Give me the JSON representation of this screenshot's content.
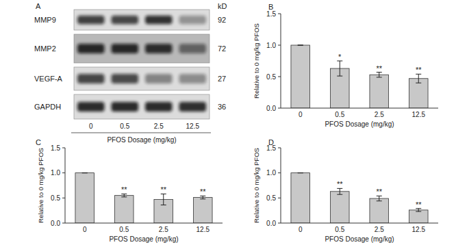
{
  "chart_data": [
    {
      "type": "bar",
      "title": "B",
      "xlabel": "PFOS Dosage (mg/kg)",
      "ylabel": "Relative to 0 mg/kg PFOS",
      "categories": [
        "0",
        "0.5",
        "2.5",
        "12.5"
      ],
      "values": [
        1.0,
        0.63,
        0.53,
        0.47
      ],
      "errors": [
        0,
        0.12,
        0.04,
        0.07
      ],
      "annotations": [
        null,
        "*",
        "**",
        "**"
      ],
      "color": "#c8c8c8",
      "ylim": [
        0,
        1.5
      ],
      "yticks": [
        {
          "value": 0,
          "label": "0.0"
        },
        0.5,
        {
          "value": 1,
          "label": "1.0"
        },
        1.5
      ],
      "grid": false
    },
    {
      "type": "bar",
      "title": "C",
      "xlabel": "PFOS Dosage (mg/kg)",
      "ylabel": "Relative to 0 mg/kg PFOS",
      "categories": [
        "0",
        "0.5",
        "2.5",
        "12.5"
      ],
      "values": [
        1.0,
        0.55,
        0.47,
        0.51
      ],
      "errors": [
        0,
        0.03,
        0.11,
        0.03
      ],
      "annotations": [
        null,
        "**",
        "**",
        "**"
      ],
      "color": "#c8c8c8",
      "ylim": [
        0,
        1.5
      ],
      "yticks": [
        {
          "value": 0,
          "label": "0.0"
        },
        0.5,
        {
          "value": 1,
          "label": "1.0"
        },
        1.5
      ],
      "grid": false
    },
    {
      "type": "bar",
      "title": "D",
      "xlabel": "PFOS Dosage (mg/kg)",
      "ylabel": "Relative to 0 mg/kg PFOS",
      "categories": [
        "0",
        "0.5",
        "2.5",
        "12.5"
      ],
      "values": [
        1.0,
        0.63,
        0.49,
        0.26
      ],
      "errors": [
        0,
        0.06,
        0.05,
        0.03
      ],
      "annotations": [
        null,
        "**",
        "**",
        "**"
      ],
      "color": "#c8c8c8",
      "ylim": [
        0,
        1.5
      ],
      "yticks": [
        {
          "value": 0,
          "label": "0.0"
        },
        0.5,
        {
          "value": 1,
          "label": "1.0"
        },
        1.5
      ],
      "grid": false
    }
  ],
  "blot": {
    "title": "A",
    "unit": "kD",
    "xlabel": "PFOS Dosage (mg/kg)",
    "lanes": [
      "0",
      "0.5",
      "2.5",
      "12.5"
    ],
    "proteins": [
      {
        "name": "MMP9",
        "kd": 92
      },
      {
        "name": "MMP2",
        "kd": 72
      },
      {
        "name": "VEGF-A",
        "kd": 27
      },
      {
        "name": "GAPDH",
        "kd": 36
      }
    ]
  }
}
